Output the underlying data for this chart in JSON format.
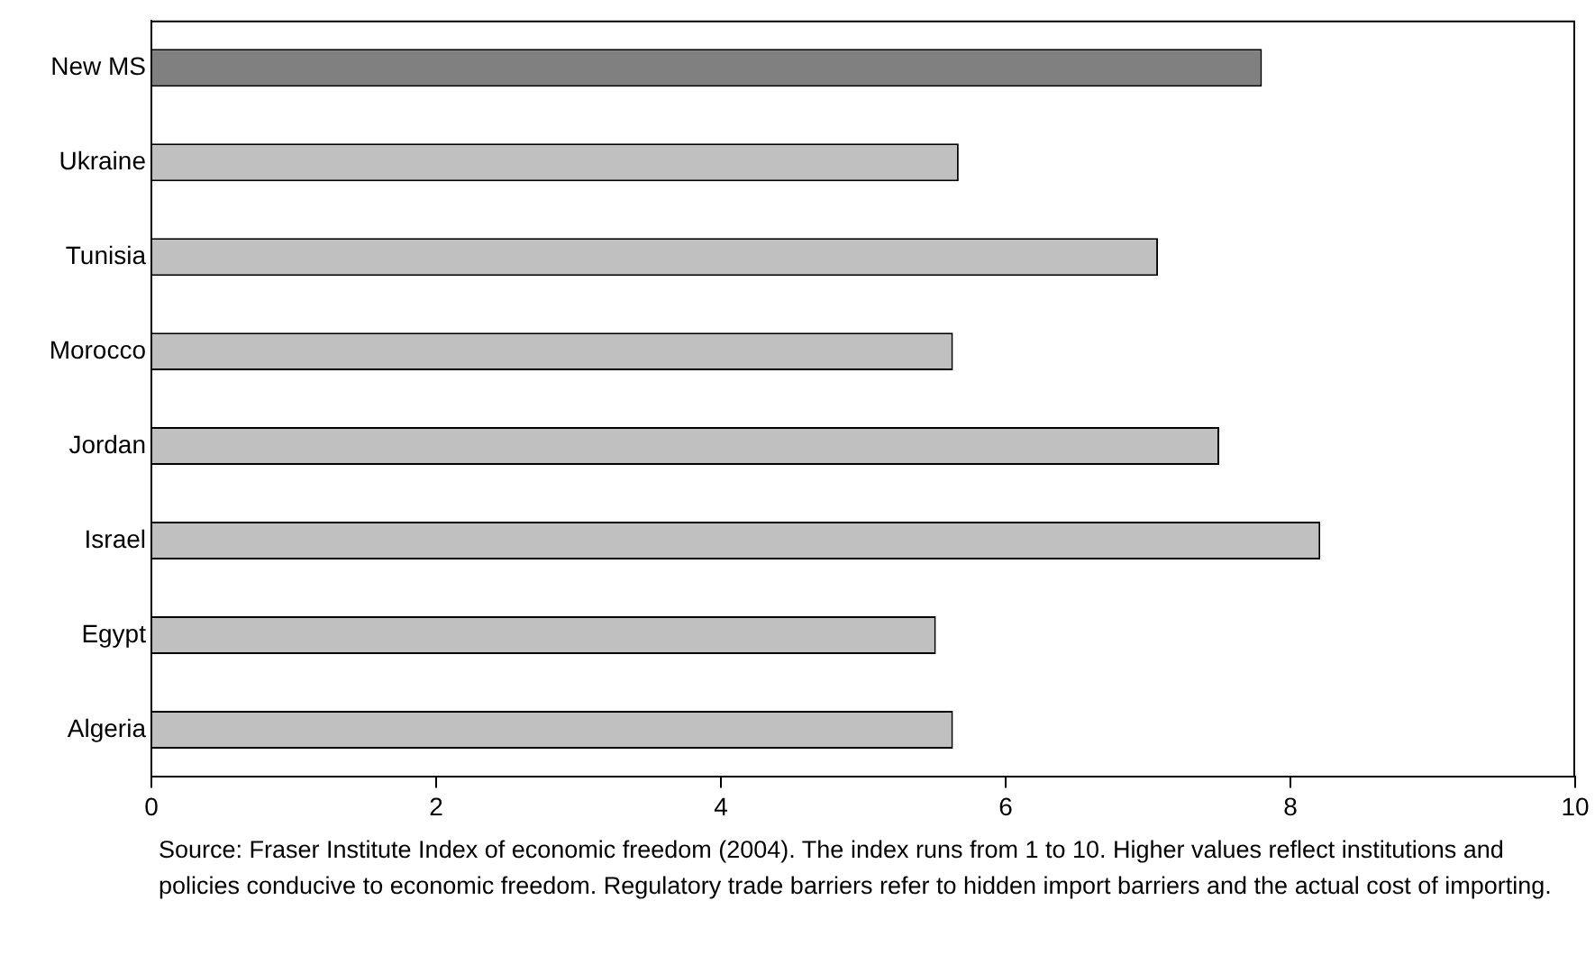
{
  "chart_data": {
    "type": "bar",
    "orientation": "horizontal",
    "categories": [
      "New MS",
      "Ukraine",
      "Tunisia",
      "Morocco",
      "Jordan",
      "Israel",
      "Egypt",
      "Algeria"
    ],
    "values": [
      7.8,
      5.67,
      7.07,
      5.63,
      7.5,
      8.21,
      5.51,
      5.63
    ],
    "colors": [
      "#808080",
      "#c0c0c0",
      "#c0c0c0",
      "#c0c0c0",
      "#c0c0c0",
      "#c0c0c0",
      "#c0c0c0",
      "#c0c0c0"
    ],
    "xlim": [
      0,
      10
    ],
    "xticks": [
      0,
      2,
      4,
      6,
      8,
      10
    ],
    "grid": false,
    "legend": false,
    "annotations": [
      "Source: Fraser Institute Index of economic freedom (2004). The index runs from 1 to 10. Higher values reflect institutions and policies conducive to economic freedom. Regulatory trade barriers refer to hidden import barriers and the actual cost of importing."
    ]
  }
}
